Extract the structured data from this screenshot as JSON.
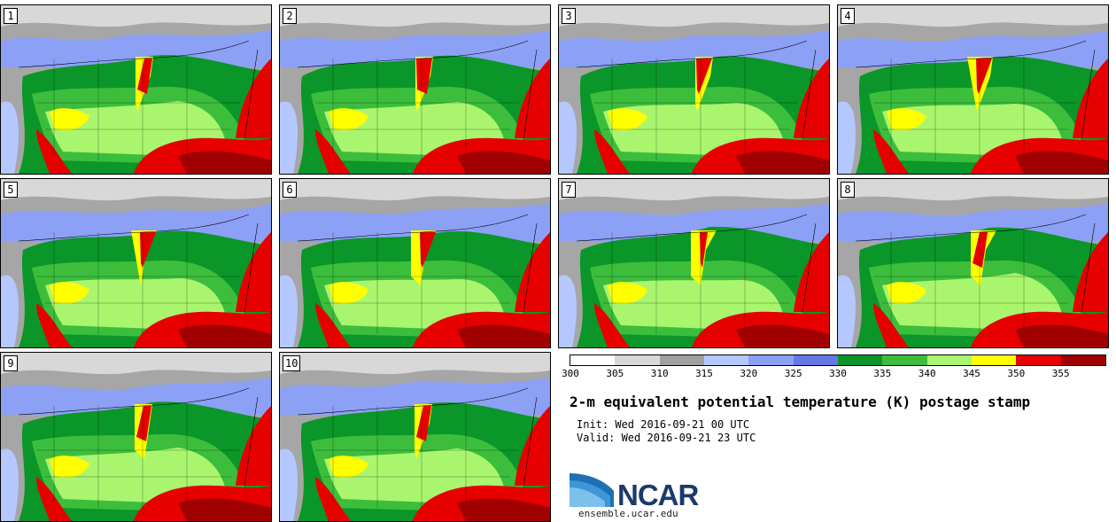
{
  "panels": [
    "1",
    "2",
    "3",
    "4",
    "5",
    "6",
    "7",
    "8",
    "9",
    "10"
  ],
  "colorbar": {
    "colors": [
      "#ffffff",
      "#d8d8d8",
      "#a0a0a0",
      "#b4c8ff",
      "#8ca0f5",
      "#6478e6",
      "#0a9628",
      "#3cbe3c",
      "#aaf56e",
      "#ffff00",
      "#e60000",
      "#a00000"
    ],
    "ticks": [
      "300",
      "305",
      "310",
      "315",
      "320",
      "325",
      "330",
      "335",
      "340",
      "345",
      "350",
      "355"
    ]
  },
  "title": "2-m equivalent potential temperature (K) postage stamp",
  "init_line": "Init: Wed 2016-09-21 00 UTC",
  "valid_line": "Valid: Wed 2016-09-21 23 UTC",
  "logo_text": "NCAR",
  "site": "ensemble.ucar.edu"
}
